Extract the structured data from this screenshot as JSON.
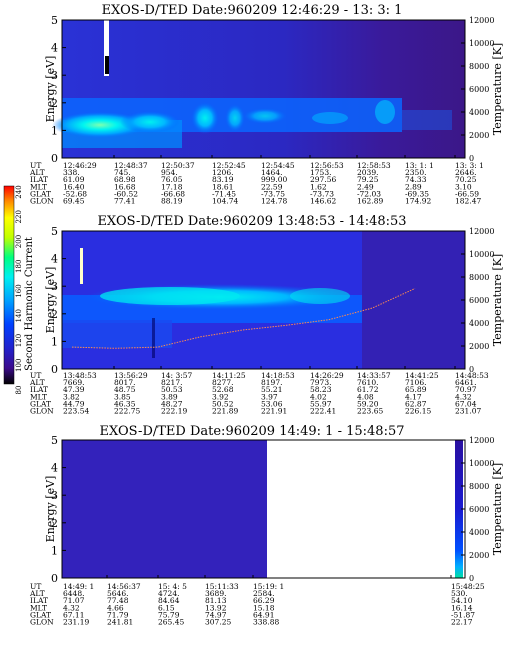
{
  "colorbar": {
    "label": "Second Harmonic Current",
    "ticks": [
      "240",
      "220",
      "200",
      "180",
      "160",
      "140",
      "120",
      "100",
      "80"
    ],
    "colors": [
      "#000000",
      "#3b0a8c",
      "#2222cc",
      "#0040ff",
      "#00a0ff",
      "#00f0f0",
      "#00ff80",
      "#c0ff00",
      "#ffff00",
      "#ff8000",
      "#ff0000"
    ]
  },
  "panels": [
    {
      "title": "EXOS-D/TED   Date:960209  12:46:29 - 13: 3: 1",
      "ylabel": "Energy [eV]",
      "y2label": "Temperature [K]",
      "yticks": [
        "0",
        "1",
        "2",
        "3",
        "4",
        "5"
      ],
      "y2ticks": [
        "0",
        "2000",
        "4000",
        "6000",
        "8000",
        "10000",
        "12000"
      ],
      "orbit": {
        "row_labels": [
          "UT",
          "ALT",
          "ILAT",
          "MLT",
          "GLAT",
          "GLON"
        ],
        "columns": [
          [
            "12:46:29",
            "338.",
            "61.09",
            "16.40",
            "-52.68",
            "69.45"
          ],
          [
            "12:48:37",
            "745.",
            "68.98",
            "16.68",
            "-60.52",
            "77.41"
          ],
          [
            "12:50:37",
            "954.",
            "76.05",
            "17.18",
            "-66.68",
            "88.19"
          ],
          [
            "12:52:45",
            "1206.",
            "83.19",
            "18.61",
            "-71.45",
            "104.74"
          ],
          [
            "12:54:45",
            "1464.",
            "999.00",
            "22.59",
            "-73.75",
            "124.78"
          ],
          [
            "12:56:53",
            "1753.",
            "297.56",
            "1.62",
            "-73.73",
            "146.62"
          ],
          [
            "12:58:53",
            "2039.",
            "79.25",
            "2.49",
            "-72.03",
            "162.89"
          ],
          [
            "13: 1: 1",
            "2350.",
            "74.33",
            "2.89",
            "-69.35",
            "174.92"
          ],
          [
            "13: 3: 1",
            "2646.",
            "70.25",
            "3.10",
            "-66.59",
            "182.47"
          ]
        ]
      }
    },
    {
      "title": "EXOS-D/TED   Date:960209  13:48:53 - 14:48:53",
      "ylabel": "Energy [eV]",
      "y2label": "Temperature [K]",
      "yticks": [
        "0",
        "1",
        "2",
        "3",
        "4",
        "5"
      ],
      "y2ticks": [
        "0",
        "2000",
        "4000",
        "6000",
        "8000",
        "10000",
        "12000"
      ],
      "orbit": {
        "row_labels": [
          "UT",
          "ALT",
          "ILAT",
          "MLT",
          "GLAT",
          "GLON"
        ],
        "columns": [
          [
            "13:48:53",
            "7669.",
            "47.39",
            "3.82",
            "44.79",
            "223.54"
          ],
          [
            "13:56:29",
            "8017.",
            "48.75",
            "3.85",
            "46.35",
            "222.75"
          ],
          [
            "14: 3:57",
            "8217.",
            "50.53",
            "3.89",
            "48.27",
            "222.19"
          ],
          [
            "14:11:25",
            "8277.",
            "52.68",
            "3.92",
            "50.52",
            "221.89"
          ],
          [
            "14:18:53",
            "8197.",
            "55.21",
            "3.97",
            "53.06",
            "221.91"
          ],
          [
            "14:26:29",
            "7973.",
            "58.23",
            "4.02",
            "55.97",
            "222.41"
          ],
          [
            "14:33:57",
            "7610.",
            "61.72",
            "4.08",
            "59.20",
            "223.65"
          ],
          [
            "14:41:25",
            "7106.",
            "65.89",
            "4.17",
            "62.87",
            "226.15"
          ],
          [
            "14:48:53",
            "6461.",
            "70.97",
            "4.32",
            "67.04",
            "231.07"
          ]
        ]
      }
    },
    {
      "title": "EXOS-D/TED   Date:960209  14:49: 1 - 15:48:57",
      "ylabel": "Energy [eV]",
      "y2label": "Temperature [K]",
      "yticks": [
        "0",
        "1",
        "2",
        "3",
        "4",
        "5"
      ],
      "y2ticks": [
        "0",
        "2000",
        "4000",
        "6000",
        "8000",
        "10000",
        "12000"
      ],
      "orbit": {
        "row_labels": [
          "UT",
          "ALT",
          "ILAT",
          "MLT",
          "GLAT",
          "GLON"
        ],
        "columns": [
          [
            "14:49: 1",
            "6448.",
            "71.07",
            "4.32",
            "67.11",
            "231.19"
          ],
          [
            "14:56:37",
            "5646.",
            "77.48",
            "4.66",
            "71.79",
            "241.81"
          ],
          [
            "15: 4: 5",
            "4724.",
            "84.64",
            "6.15",
            "75.79",
            "265.45"
          ],
          [
            "15:11:33",
            "3689.",
            "81.13",
            "13.92",
            "74.97",
            "307.25"
          ],
          [
            "15:19: 1",
            "2584.",
            "66.29",
            "15.18",
            "64.91",
            "338.88"
          ],
          [
            "15:48:25",
            "530.",
            "54.10",
            "16.14",
            "-51.87",
            "22.17"
          ]
        ]
      }
    }
  ],
  "chart_data": [
    {
      "type": "heatmap",
      "title": "EXOS-D/TED   Date:960209  12:46:29 - 13: 3: 1",
      "xlabel": "UT",
      "ylabel": "Energy [eV]",
      "y2label": "Temperature [K]",
      "ylim": [
        0,
        5
      ],
      "y2lim": [
        0,
        12000
      ],
      "x_ticks": [
        "12:46:29",
        "12:48:37",
        "12:50:37",
        "12:52:45",
        "12:54:45",
        "12:56:53",
        "12:58:53",
        "13: 1: 1",
        "13: 3: 1"
      ],
      "colorbar_label": "Second Harmonic Current",
      "colorbar_range": [
        80,
        240
      ],
      "intensity_peak_energy_eV": [
        1.2,
        1.4,
        1.7,
        1.6,
        1.5,
        1.5,
        1.5,
        1.4,
        1.4
      ],
      "temperature_K": []
    },
    {
      "type": "heatmap",
      "title": "EXOS-D/TED   Date:960209  13:48:53 - 14:48:53",
      "xlabel": "UT",
      "ylabel": "Energy [eV]",
      "y2label": "Temperature [K]",
      "ylim": [
        0,
        5
      ],
      "y2lim": [
        0,
        12000
      ],
      "x_ticks": [
        "13:48:53",
        "13:56:29",
        "14: 3:57",
        "14:11:25",
        "14:18:53",
        "14:26:29",
        "14:33:57",
        "14:41:25",
        "14:48:53"
      ],
      "colorbar_label": "Second Harmonic Current",
      "colorbar_range": [
        80,
        240
      ],
      "intensity_peak_energy_eV": [
        2.3,
        2.4,
        2.4,
        2.4,
        2.3,
        2.3,
        2.4,
        2.7,
        2.9
      ],
      "temperature_K": [
        1900,
        1800,
        1900,
        2800,
        3400,
        3800,
        4300,
        5300,
        7000
      ]
    },
    {
      "type": "heatmap",
      "title": "EXOS-D/TED   Date:960209  14:49: 1 - 15:48:57",
      "xlabel": "UT",
      "ylabel": "Energy [eV]",
      "y2label": "Temperature [K]",
      "ylim": [
        0,
        5
      ],
      "y2lim": [
        0,
        12000
      ],
      "x_ticks": [
        "14:49: 1",
        "14:56:37",
        "15: 4: 5",
        "15:11:33",
        "15:19: 1",
        "15:48:25"
      ],
      "colorbar_label": "Second Harmonic Current",
      "colorbar_range": [
        80,
        240
      ],
      "intensity_peak_energy_eV": [],
      "temperature_K": []
    }
  ]
}
